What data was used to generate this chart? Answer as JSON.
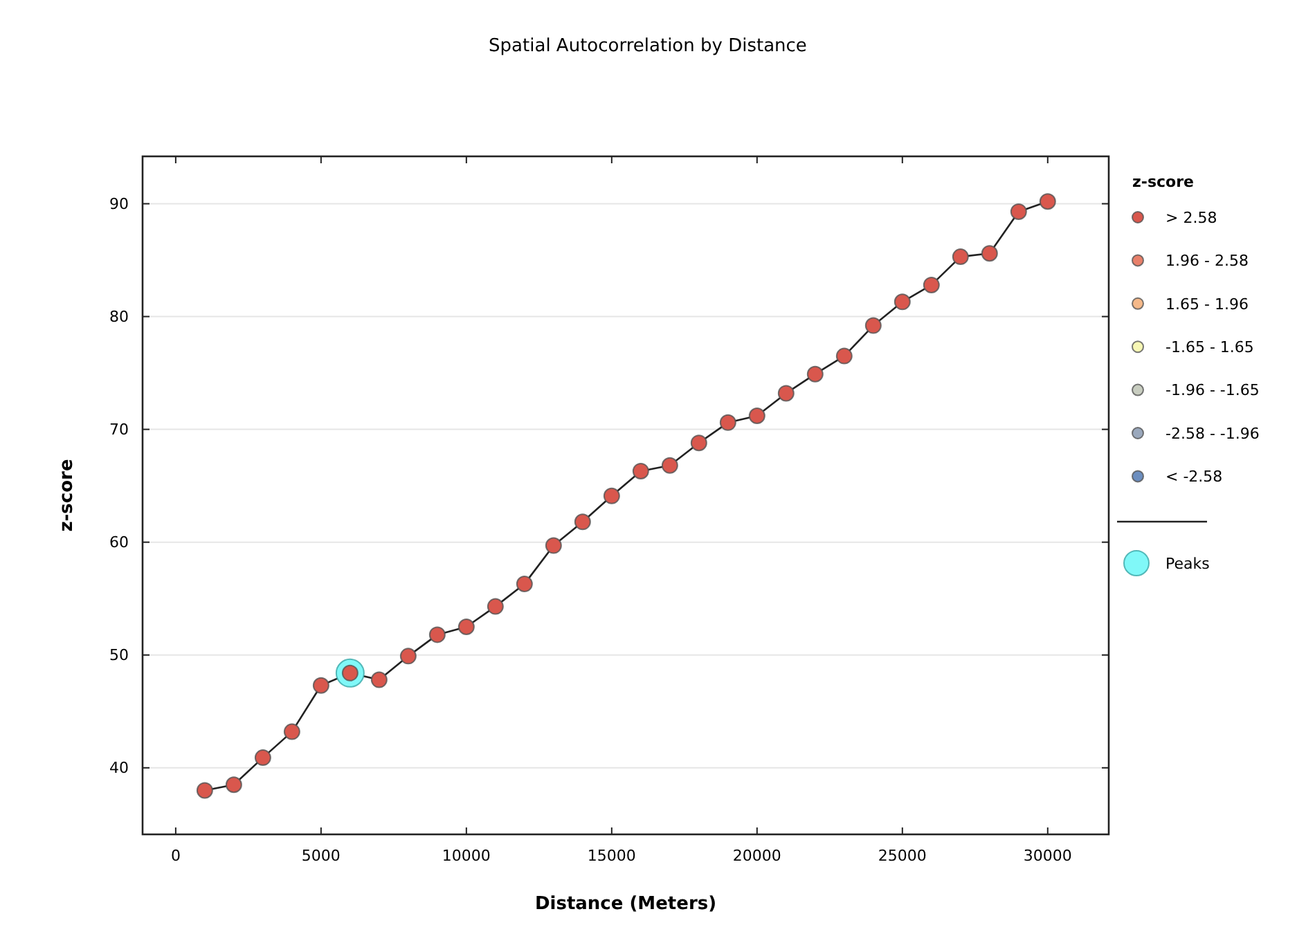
{
  "chart_data": {
    "type": "scatter",
    "title": "Spatial Autocorrelation by Distance",
    "xlabel": "Distance (Meters)",
    "ylabel": "z-score",
    "legend_title": "z-score",
    "legend": "right",
    "grid": "y",
    "x": [
      1000,
      2000,
      3000,
      4000,
      5000,
      6000,
      7000,
      8000,
      9000,
      10000,
      11000,
      12000,
      13000,
      14000,
      15000,
      16000,
      17000,
      18000,
      19000,
      20000,
      21000,
      22000,
      23000,
      24000,
      25000,
      26000,
      27000,
      28000,
      29000,
      30000
    ],
    "xlim": [
      -1140,
      32100
    ],
    "xticks": [
      0,
      5000,
      10000,
      15000,
      20000,
      25000,
      30000
    ],
    "ylim": [
      34.1,
      94.2
    ],
    "yticks": [
      40,
      50,
      60,
      70,
      80,
      90
    ],
    "series": [
      {
        "type": "line",
        "color": "#222222",
        "values": [
          38.0,
          38.5,
          40.9,
          43.2,
          47.3,
          48.4,
          47.8,
          49.9,
          51.8,
          52.5,
          54.3,
          56.3,
          59.7,
          61.8,
          64.1,
          66.3,
          66.8,
          68.8,
          70.6,
          71.2,
          73.2,
          74.9,
          76.5,
          79.2,
          81.3,
          82.8,
          85.3,
          85.6,
          89.3,
          90.2
        ]
      },
      {
        "name": "> 2.58",
        "marker": "circle",
        "color": "#d9574d",
        "values": [
          38.0,
          38.5,
          40.9,
          43.2,
          47.3,
          48.4,
          47.8,
          49.9,
          51.8,
          52.5,
          54.3,
          56.3,
          59.7,
          61.8,
          64.1,
          66.3,
          66.8,
          68.8,
          70.6,
          71.2,
          73.2,
          74.9,
          76.5,
          79.2,
          81.3,
          82.8,
          85.3,
          85.6,
          89.3,
          90.2
        ]
      },
      {
        "name": "1.96 - 2.58",
        "color": "#e8806a",
        "values": [
          null,
          null,
          null,
          null,
          null,
          null,
          null,
          null,
          null,
          null,
          null,
          null,
          null,
          null,
          null,
          null,
          null,
          null,
          null,
          null,
          null,
          null,
          null,
          null,
          null,
          null,
          null,
          null,
          null,
          null
        ]
      },
      {
        "name": "1.65 - 1.96",
        "color": "#f5b98a",
        "values": [
          null,
          null,
          null,
          null,
          null,
          null,
          null,
          null,
          null,
          null,
          null,
          null,
          null,
          null,
          null,
          null,
          null,
          null,
          null,
          null,
          null,
          null,
          null,
          null,
          null,
          null,
          null,
          null,
          null,
          null
        ]
      },
      {
        "name": "-1.65 - 1.65",
        "color": "#f7f7b5",
        "values": [
          null,
          null,
          null,
          null,
          null,
          null,
          null,
          null,
          null,
          null,
          null,
          null,
          null,
          null,
          null,
          null,
          null,
          null,
          null,
          null,
          null,
          null,
          null,
          null,
          null,
          null,
          null,
          null,
          null,
          null
        ]
      },
      {
        "name": "-1.96 - -1.65",
        "color": "#c8cdc0",
        "values": [
          null,
          null,
          null,
          null,
          null,
          null,
          null,
          null,
          null,
          null,
          null,
          null,
          null,
          null,
          null,
          null,
          null,
          null,
          null,
          null,
          null,
          null,
          null,
          null,
          null,
          null,
          null,
          null,
          null,
          null
        ]
      },
      {
        "name": "-2.58 - -1.96",
        "color": "#9aa8bc",
        "values": [
          null,
          null,
          null,
          null,
          null,
          null,
          null,
          null,
          null,
          null,
          null,
          null,
          null,
          null,
          null,
          null,
          null,
          null,
          null,
          null,
          null,
          null,
          null,
          null,
          null,
          null,
          null,
          null,
          null,
          null
        ]
      },
      {
        "name": "< -2.58",
        "color": "#6c8ebf",
        "values": [
          null,
          null,
          null,
          null,
          null,
          null,
          null,
          null,
          null,
          null,
          null,
          null,
          null,
          null,
          null,
          null,
          null,
          null,
          null,
          null,
          null,
          null,
          null,
          null,
          null,
          null,
          null,
          null,
          null,
          null
        ]
      },
      {
        "name": "Peaks",
        "marker": "circle",
        "color": "#80f8f8",
        "x": [
          6000
        ],
        "values": [
          48.4
        ]
      }
    ]
  }
}
